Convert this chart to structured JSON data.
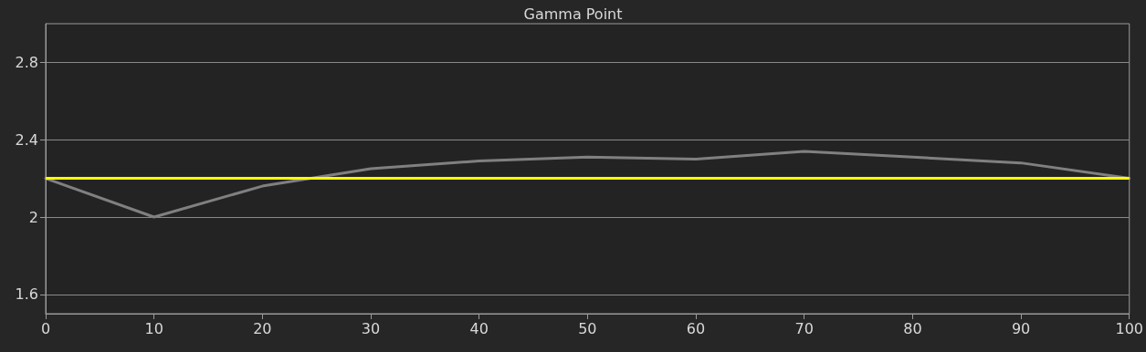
{
  "chart_data": {
    "type": "line",
    "title": "Gamma Point",
    "x": [
      0,
      10,
      20,
      30,
      40,
      50,
      60,
      70,
      80,
      90,
      100
    ],
    "series": [
      {
        "color": "#808080",
        "values": [
          2.2,
          2.0,
          2.16,
          2.25,
          2.29,
          2.31,
          2.3,
          2.34,
          2.31,
          2.28,
          2.2
        ]
      }
    ],
    "xlim": [
      0,
      100
    ],
    "xticks": [
      0,
      10,
      20,
      30,
      40,
      50,
      60,
      70,
      80,
      90,
      100
    ],
    "ylim": [
      1.5,
      3.0
    ],
    "yticks": [
      1.6,
      2,
      2.4,
      2.8
    ],
    "ref_lines": [
      {
        "axis": "y",
        "value": 2.2,
        "color": "#ffff00"
      }
    ],
    "grid": "y",
    "marker": "none",
    "line_style": "solid"
  }
}
